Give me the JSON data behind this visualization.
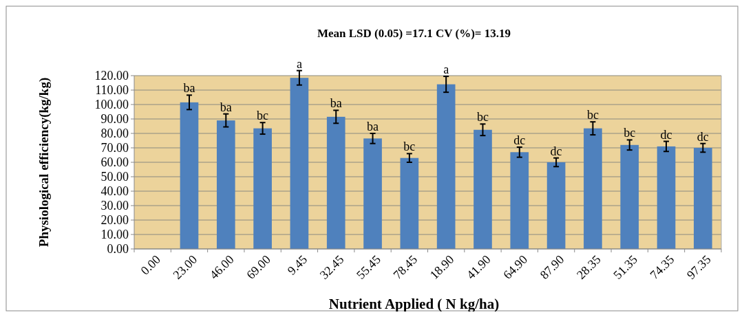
{
  "chart_data": {
    "type": "bar",
    "title": "Mean LSD (0.05) =17.1 CV (%)= 13.19",
    "xlabel": "Nutrient Applied  ( N kg/ha)",
    "ylabel": "Physiological efficiency(kg/kg)",
    "categories": [
      "0.00",
      "23.00",
      "46.00",
      "69.00",
      "9.45",
      "32.45",
      "55.45",
      "78.45",
      "18.90",
      "41.90",
      "64.90",
      "87.90",
      "28.35",
      "51.35",
      "74.35",
      "97.35"
    ],
    "values": [
      0,
      101.5,
      89,
      83.5,
      118.5,
      91.5,
      76.5,
      63,
      114,
      82.5,
      67,
      60,
      83.5,
      72,
      71,
      70
    ],
    "errors": [
      null,
      5,
      4.5,
      4,
      5,
      4.5,
      3.5,
      3,
      5.5,
      4,
      3.5,
      3,
      4.5,
      3.5,
      3.5,
      3
    ],
    "color": "#4f81bd",
    "ylim": [
      0,
      120
    ],
    "yticks": [
      {
        "value": 0,
        "label": "0.00"
      },
      {
        "value": 10,
        "label": "10.00"
      },
      {
        "value": 20,
        "label": "20.00"
      },
      {
        "value": 30,
        "label": "30.00"
      },
      {
        "value": 40,
        "label": "40.00"
      },
      {
        "value": 50,
        "label": "50.00"
      },
      {
        "value": 60,
        "label": "60.00"
      },
      {
        "value": 70,
        "label": "70.00"
      },
      {
        "value": 80,
        "label": "80.00"
      },
      {
        "value": 90,
        "label": "90.00"
      },
      {
        "value": 100,
        "label": "100.00"
      },
      {
        "value": 110,
        "label": "110.00"
      },
      {
        "value": 120,
        "label": "120.00"
      }
    ],
    "grid": "y",
    "annotations": [
      {
        "text": "ba",
        "x": "23.00",
        "y": 106.5
      },
      {
        "text": "ba",
        "x": "46.00",
        "y": 93.5
      },
      {
        "text": "bc",
        "x": "69.00",
        "y": 87.5
      },
      {
        "text": "a",
        "x": "9.45",
        "y": 123.5
      },
      {
        "text": "ba",
        "x": "32.45",
        "y": 96
      },
      {
        "text": "ba",
        "x": "55.45",
        "y": 80
      },
      {
        "text": "bc",
        "x": "78.45",
        "y": 66
      },
      {
        "text": "a",
        "x": "18.90",
        "y": 119.5
      },
      {
        "text": "bc",
        "x": "41.90",
        "y": 86.5
      },
      {
        "text": "dc",
        "x": "64.90",
        "y": 70.5
      },
      {
        "text": "dc",
        "x": "87.90",
        "y": 63
      },
      {
        "text": "bc",
        "x": "28.35",
        "y": 88
      },
      {
        "text": "bc",
        "x": "51.35",
        "y": 75.5
      },
      {
        "text": "dc",
        "x": "74.35",
        "y": 74.5
      },
      {
        "text": "dc",
        "x": "97.35",
        "y": 73
      }
    ]
  }
}
